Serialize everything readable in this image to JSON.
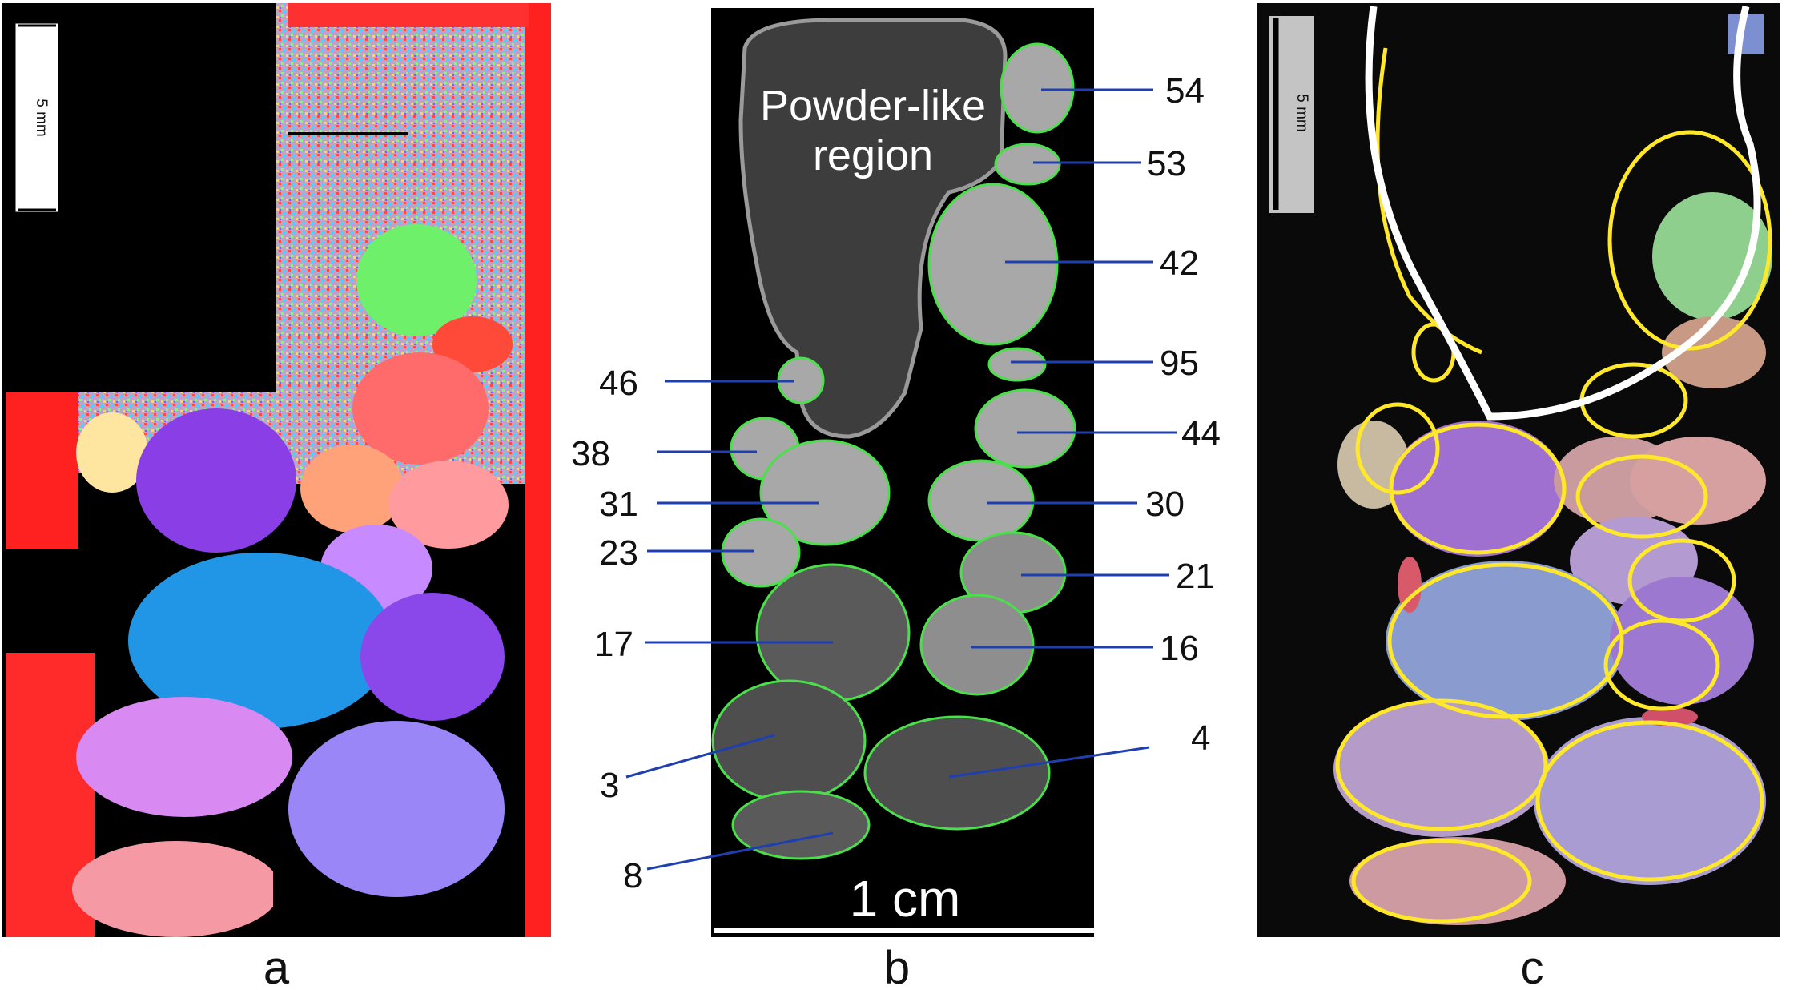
{
  "panel_a": {
    "label": "a",
    "scale_bar_text": "5 mm"
  },
  "panel_b": {
    "label": "b",
    "region_label_line1": "Powder-like",
    "region_label_line2": "region",
    "scale_bar_text": "1 cm",
    "grain_labels": [
      "54",
      "53",
      "42",
      "95",
      "44",
      "30",
      "21",
      "16",
      "4",
      "46",
      "38",
      "31",
      "23",
      "17",
      "3",
      "8"
    ]
  },
  "panel_c": {
    "label": "c",
    "scale_bar_text": "5 mm"
  },
  "colors": {
    "leader_line": "#1f3fb0",
    "boundary_green": "#4be04b",
    "boundary_yellow": "#ffe82a",
    "boundary_white": "#ffffff"
  }
}
